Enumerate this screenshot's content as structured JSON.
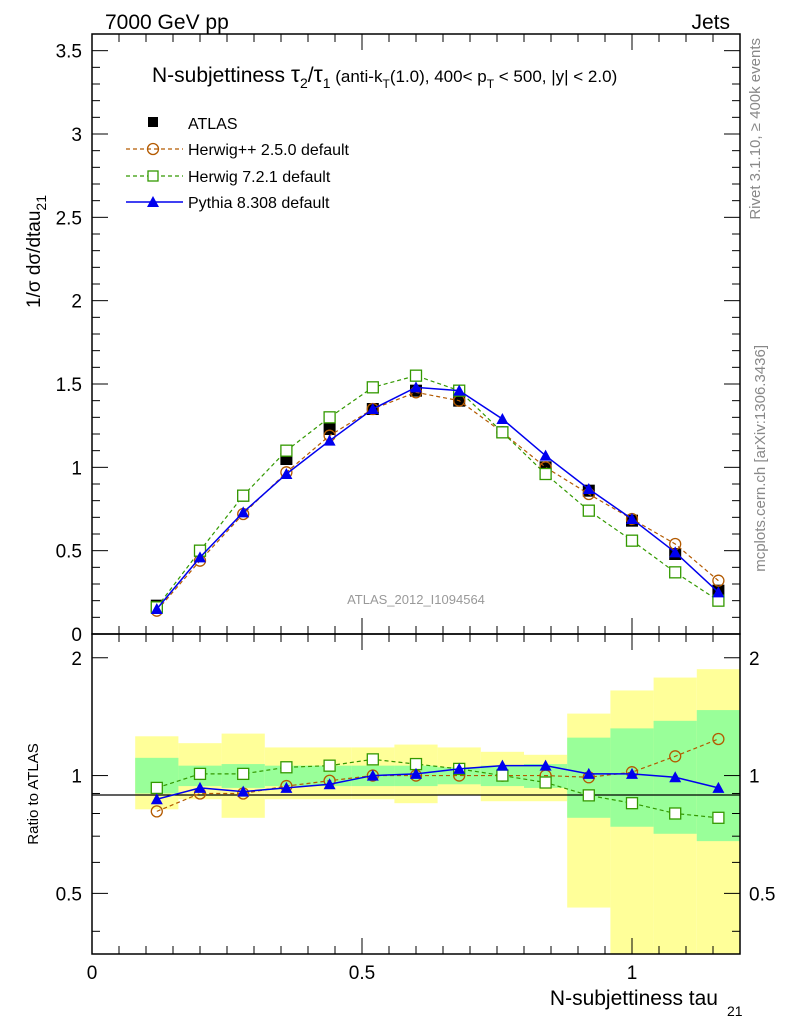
{
  "header": {
    "left": "7000 GeV pp",
    "right": "Jets"
  },
  "side": {
    "rivet": "Rivet 3.1.10, ≥ 400k events",
    "mcplots": "mcplots.cern.ch [arXiv:1306.3436]"
  },
  "chart_data": [
    {
      "type": "line",
      "panel": "main",
      "title": "N-subjettiness τ₂/τ₁ (anti-k_T(1.0), 400< p_T < 500, |y| < 2.0)",
      "title_parts": {
        "prefix": "N-subjettiness ",
        "tau": "τ",
        "two": "2",
        "slash": "/",
        "one": "1",
        "cut_a": " (anti-k",
        "T": "T",
        "cut_b": "(1.0), 400< p",
        "cut_c": " < 500, |y| < 2.0)"
      },
      "ylabel": "1/σ dσ/dtau",
      "ylabel_sub": "21",
      "watermark": "ATLAS_2012_I1094564",
      "xlim": [
        0,
        1.2
      ],
      "ylim": [
        0,
        3.6
      ],
      "yticks": [
        "0",
        "0.5",
        "1",
        "1.5",
        "2",
        "2.5",
        "3",
        "3.5"
      ],
      "ytick_values": [
        0,
        0.5,
        1,
        1.5,
        2,
        2.5,
        3,
        3.5
      ],
      "x": [
        0.12,
        0.2,
        0.28,
        0.36,
        0.44,
        0.52,
        0.6,
        0.68,
        0.76,
        0.84,
        0.92,
        1.0,
        1.08,
        1.16
      ],
      "legend": [
        "ATLAS",
        "Herwig++ 2.5.0 default",
        "Herwig 7.2.1 default",
        "Pythia 8.308 default"
      ],
      "series": [
        {
          "name": "ATLAS",
          "color": "#000000",
          "marker": "square-filled",
          "values": [
            0.17,
            0.5,
            0.83,
            1.05,
            1.23,
            1.35,
            1.46,
            1.4,
            1.21,
            1.0,
            0.86,
            0.68,
            0.48,
            0.26
          ]
        },
        {
          "name": "Herwig++ 2.5.0 default",
          "color": "#b35a00",
          "marker": "circle-open",
          "values": [
            0.14,
            0.44,
            0.72,
            0.97,
            1.19,
            1.35,
            1.45,
            1.4,
            1.21,
            1.0,
            0.84,
            0.69,
            0.54,
            0.32
          ]
        },
        {
          "name": "Herwig 7.2.1 default",
          "color": "#339900",
          "marker": "square-open",
          "values": [
            0.16,
            0.5,
            0.83,
            1.1,
            1.3,
            1.48,
            1.55,
            1.46,
            1.21,
            0.96,
            0.74,
            0.56,
            0.37,
            0.2
          ]
        },
        {
          "name": "Pythia 8.308 default",
          "color": "#0000ee",
          "marker": "triangle-filled",
          "values": [
            0.15,
            0.46,
            0.73,
            0.96,
            1.16,
            1.35,
            1.48,
            1.46,
            1.29,
            1.07,
            0.87,
            0.69,
            0.49,
            0.25
          ]
        }
      ]
    },
    {
      "type": "line",
      "panel": "ratio",
      "ylabel": "Ratio to ATLAS",
      "xlabel": "N-subjettiness tau",
      "xlabel_sub": "21",
      "xlim": [
        0,
        1.2
      ],
      "ylim": [
        0.35,
        2.3
      ],
      "yscale": "log",
      "xticks": [
        "0",
        "0.5",
        "1"
      ],
      "xtick_values": [
        0,
        0.5,
        1
      ],
      "yticks": [
        "0.5",
        "1",
        "2"
      ],
      "ytick_values": [
        0.5,
        1,
        2
      ],
      "bins": [
        [
          0.08,
          0.16
        ],
        [
          0.16,
          0.24
        ],
        [
          0.24,
          0.32
        ],
        [
          0.32,
          0.4
        ],
        [
          0.4,
          0.48
        ],
        [
          0.48,
          0.56
        ],
        [
          0.56,
          0.64
        ],
        [
          0.64,
          0.72
        ],
        [
          0.72,
          0.8
        ],
        [
          0.8,
          0.88
        ],
        [
          0.88,
          0.96
        ],
        [
          0.96,
          1.04
        ],
        [
          1.04,
          1.12
        ],
        [
          1.12,
          1.2
        ]
      ],
      "band_stat": {
        "color": "#99ff99",
        "lo": [
          0.9,
          0.94,
          0.93,
          0.94,
          0.94,
          0.94,
          0.94,
          0.95,
          0.94,
          0.93,
          0.78,
          0.74,
          0.71,
          0.68
        ],
        "hi": [
          1.11,
          1.06,
          1.07,
          1.06,
          1.06,
          1.06,
          1.06,
          1.05,
          1.06,
          1.07,
          1.25,
          1.32,
          1.38,
          1.47
        ]
      },
      "band_total": {
        "color": "#ffff99",
        "lo": [
          0.82,
          0.87,
          0.78,
          0.87,
          0.87,
          0.87,
          0.85,
          0.89,
          0.86,
          0.86,
          0.46,
          0.35,
          0.35,
          0.35
        ],
        "hi": [
          1.26,
          1.21,
          1.28,
          1.18,
          1.18,
          1.18,
          1.2,
          1.18,
          1.15,
          1.13,
          1.44,
          1.65,
          1.78,
          1.87
        ]
      },
      "x": [
        0.12,
        0.2,
        0.28,
        0.36,
        0.44,
        0.52,
        0.6,
        0.68,
        0.76,
        0.84,
        0.92,
        1.0,
        1.08,
        1.16
      ],
      "series": [
        {
          "name": "Herwig++ 2.5.0 default",
          "color": "#b35a00",
          "marker": "circle-open",
          "values": [
            0.81,
            0.9,
            0.9,
            0.94,
            0.97,
            1.0,
            1.0,
            1.0,
            1.0,
            1.0,
            0.99,
            1.02,
            1.12,
            1.24
          ]
        },
        {
          "name": "Herwig 7.2.1 default",
          "color": "#339900",
          "marker": "square-open",
          "values": [
            0.93,
            1.01,
            1.01,
            1.05,
            1.06,
            1.1,
            1.07,
            1.04,
            1.0,
            0.96,
            0.89,
            0.85,
            0.8,
            0.78
          ]
        },
        {
          "name": "Pythia 8.308 default",
          "color": "#0000ee",
          "marker": "triangle-filled",
          "values": [
            0.87,
            0.93,
            0.91,
            0.93,
            0.95,
            1.0,
            1.01,
            1.04,
            1.06,
            1.06,
            1.01,
            1.01,
            0.99,
            0.93
          ]
        }
      ]
    }
  ]
}
